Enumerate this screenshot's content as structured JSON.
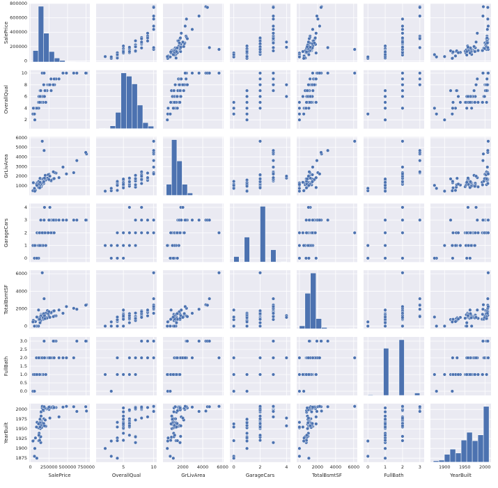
{
  "chart_data": {
    "type": "pairplot",
    "color": "#4c72b0",
    "grid": true,
    "variables": [
      {
        "name": "SalePrice",
        "lim": [
          -15000,
          800000
        ],
        "xticks": [
          0,
          250000,
          500000,
          750000
        ],
        "yticks": [
          0,
          200000,
          400000,
          600000,
          800000
        ]
      },
      {
        "name": "OverallQual",
        "lim": [
          0.5,
          10.5
        ],
        "xticks": [
          5,
          10
        ],
        "yticks": [
          2,
          4,
          6,
          8,
          10
        ]
      },
      {
        "name": "GrLivArea",
        "lim": [
          0,
          6100
        ],
        "xticks": [
          2000,
          4000,
          6000
        ],
        "yticks": [
          1000,
          2000,
          3000,
          4000,
          5000,
          6000
        ]
      },
      {
        "name": "GarageCars",
        "lim": [
          -0.3,
          4.3
        ],
        "xticks": [
          0,
          2,
          4
        ],
        "yticks": [
          0,
          1,
          2,
          3,
          4
        ]
      },
      {
        "name": "TotalBsmtSF",
        "lim": [
          -300,
          6400
        ],
        "xticks": [
          0,
          2000,
          4000,
          6000
        ],
        "yticks": [
          0,
          2000,
          4000,
          6000
        ]
      },
      {
        "name": "FullBath",
        "lim": [
          -0.25,
          3.25
        ],
        "xticks": [
          0,
          1,
          2,
          3
        ],
        "yticks": [
          {
            "value": 0,
            "label": "0.0"
          },
          {
            "value": 0.5,
            "label": "0.5"
          },
          {
            "value": 1,
            "label": "1.0"
          },
          {
            "value": 1.5,
            "label": "1.5"
          },
          {
            "value": 2,
            "label": "2.0"
          },
          {
            "value": 2.5,
            "label": "2.5"
          },
          {
            "value": 3,
            "label": "3.0"
          }
        ]
      },
      {
        "name": "YearBuilt",
        "lim": [
          1865,
          2015
        ],
        "xticks": [
          1900,
          1950,
          2000
        ],
        "yticks": [
          1875,
          1900,
          1925,
          1950,
          1975,
          2000
        ]
      }
    ],
    "rows": [
      [
        208500,
        7,
        1710,
        2,
        856,
        2,
        2003
      ],
      [
        181500,
        6,
        1262,
        2,
        1262,
        2,
        1976
      ],
      [
        223500,
        7,
        1786,
        2,
        920,
        2,
        2001
      ],
      [
        140000,
        7,
        1717,
        3,
        756,
        1,
        1915
      ],
      [
        250000,
        8,
        2198,
        3,
        1145,
        2,
        2000
      ],
      [
        143000,
        5,
        1362,
        2,
        796,
        1,
        1993
      ],
      [
        307000,
        8,
        1694,
        2,
        1686,
        2,
        2004
      ],
      [
        200000,
        7,
        2090,
        2,
        1107,
        2,
        1973
      ],
      [
        129900,
        7,
        1774,
        2,
        952,
        2,
        1931
      ],
      [
        118000,
        5,
        1077,
        1,
        991,
        1,
        1939
      ],
      [
        129500,
        5,
        1040,
        1,
        1040,
        1,
        1965
      ],
      [
        345000,
        9,
        2324,
        3,
        1175,
        3,
        2005
      ],
      [
        144000,
        5,
        912,
        1,
        912,
        1,
        1962
      ],
      [
        279500,
        7,
        1494,
        3,
        1494,
        2,
        2006
      ],
      [
        157000,
        6,
        1253,
        1,
        1253,
        1,
        1960
      ],
      [
        132000,
        7,
        854,
        2,
        832,
        1,
        1929
      ],
      [
        149000,
        6,
        1004,
        2,
        1004,
        1,
        1970
      ],
      [
        90000,
        4,
        1296,
        2,
        0,
        2,
        1967
      ],
      [
        159000,
        5,
        1114,
        2,
        1114,
        1,
        2004
      ],
      [
        139000,
        5,
        1339,
        1,
        1029,
        1,
        1958
      ],
      [
        325300,
        8,
        2376,
        3,
        1158,
        3,
        2005
      ],
      [
        139400,
        7,
        1108,
        1,
        637,
        1,
        1930
      ],
      [
        230000,
        8,
        1795,
        2,
        1777,
        2,
        2002
      ],
      [
        129900,
        5,
        1060,
        2,
        1060,
        1,
        1976
      ],
      [
        154000,
        5,
        1060,
        1,
        1060,
        1,
        1968
      ],
      [
        256300,
        8,
        1600,
        3,
        1566,
        2,
        2007
      ],
      [
        134800,
        5,
        900,
        2,
        900,
        1,
        1951
      ],
      [
        306000,
        8,
        1704,
        3,
        1704,
        2,
        2007
      ],
      [
        207500,
        5,
        1600,
        1,
        1484,
        1,
        1957
      ],
      [
        68500,
        4,
        520,
        1,
        520,
        1,
        1927
      ],
      [
        40000,
        4,
        1317,
        1,
        649,
        1,
        1920
      ],
      [
        149350,
        5,
        1228,
        1,
        1228,
        1,
        1966
      ],
      [
        179900,
        8,
        1234,
        2,
        1234,
        2,
        2007
      ],
      [
        165500,
        5,
        1700,
        2,
        1398,
        1,
        1959
      ],
      [
        277500,
        9,
        1561,
        2,
        1561,
        2,
        2005
      ],
      [
        309000,
        8,
        2452,
        3,
        1088,
        3,
        2004
      ],
      [
        145000,
        5,
        1097,
        2,
        1350,
        1,
        1994
      ],
      [
        153000,
        5,
        1297,
        2,
        1297,
        1,
        1954
      ],
      [
        109000,
        5,
        1057,
        1,
        0,
        1,
        1953
      ],
      [
        82000,
        4,
        1152,
        0,
        0,
        2,
        1955
      ],
      [
        160000,
        6,
        1324,
        2,
        1324,
        2,
        1965
      ],
      [
        170000,
        5,
        1328,
        1,
        1328,
        1,
        1959
      ],
      [
        144000,
        5,
        884,
        2,
        884,
        1,
        1983
      ],
      [
        130250,
        5,
        938,
        1,
        938,
        1,
        1975
      ],
      [
        141000,
        5,
        1150,
        1,
        1150,
        1,
        1959
      ],
      [
        319900,
        9,
        1752,
        2,
        1752,
        2,
        2005
      ],
      [
        239686,
        8,
        2149,
        2,
        1434,
        2,
        2003
      ],
      [
        249700,
        8,
        1656,
        3,
        1656,
        2,
        2006
      ],
      [
        113000,
        4,
        1452,
        0,
        736,
        2,
        1920
      ],
      [
        127000,
        6,
        955,
        1,
        955,
        1,
        1966
      ],
      [
        177000,
        6,
        1470,
        2,
        794,
        2,
        1997
      ],
      [
        114500,
        6,
        1176,
        2,
        816,
        1,
        1934
      ],
      [
        110000,
        5,
        816,
        0,
        1842,
        1,
        1963
      ],
      [
        385000,
        9,
        1842,
        3,
        1842,
        2,
        1981
      ],
      [
        130000,
        6,
        1360,
        2,
        384,
        1,
        1955
      ],
      [
        180500,
        6,
        1425,
        2,
        1425,
        2,
        1964
      ],
      [
        172500,
        6,
        1739,
        2,
        970,
        2,
        1999
      ],
      [
        196500,
        7,
        1720,
        2,
        860,
        2,
        2004
      ],
      [
        438780,
        10,
        2945,
        3,
        1468,
        2,
        2006
      ],
      [
        124900,
        5,
        780,
        2,
        780,
        1,
        1921
      ],
      [
        34900,
        3,
        480,
        1,
        480,
        0,
        1919
      ],
      [
        755000,
        10,
        4316,
        3,
        2444,
        3,
        1996
      ],
      [
        745000,
        10,
        4476,
        3,
        2396,
        3,
        2007
      ],
      [
        160000,
        10,
        5642,
        2,
        6110,
        2,
        2008
      ],
      [
        184750,
        10,
        4676,
        3,
        3138,
        3,
        2007
      ],
      [
        625000,
        10,
        3627,
        3,
        1930,
        3,
        1995
      ],
      [
        582933,
        10,
        2364,
        3,
        2042,
        2,
        2007
      ],
      [
        60000,
        2,
        438,
        1,
        0,
        1,
        1900
      ],
      [
        55000,
        3,
        729,
        0,
        0,
        0,
        1880
      ],
      [
        190000,
        6,
        1800,
        4,
        1200,
        2,
        1958
      ],
      [
        262500,
        8,
        2000,
        4,
        1000,
        2,
        1978
      ],
      [
        485000,
        10,
        2234,
        3,
        2234,
        2,
        2008
      ],
      [
        87000,
        4,
        1040,
        0,
        1040,
        1,
        1875
      ]
    ],
    "histograms": [
      {
        "bins": [
          34900,
          106910,
          178920,
          250930,
          322940,
          394950,
          466960,
          538970,
          610980,
          682990,
          755000
        ],
        "counts": [
          148,
          723,
          373,
          135,
          51,
          19,
          4,
          3,
          2,
          2
        ]
      },
      {
        "bins": [
          1,
          1.9,
          2.8,
          3.7,
          4.6,
          5.5,
          6.4,
          7.3,
          8.2,
          9.1,
          10
        ],
        "counts": [
          2,
          3,
          20,
          116,
          397,
          374,
          319,
          168,
          43,
          18
        ]
      },
      {
        "bins": [
          334,
          864.8,
          1395.6,
          1926.4,
          2457.2,
          2988,
          3518.8,
          4049.6,
          4580.4,
          5111.2,
          5642
        ],
        "counts": [
          141,
          706,
          436,
          140,
          30,
          4,
          1,
          1,
          0,
          1
        ]
      },
      {
        "bins": [
          0,
          0.4,
          0.8,
          1.2,
          1.6,
          2,
          2.4,
          2.8,
          3.2,
          3.6,
          4
        ],
        "counts": [
          81,
          0,
          369,
          0,
          0,
          824,
          0,
          181,
          0,
          5
        ]
      },
      {
        "bins": [
          0,
          611,
          1222,
          1833,
          2444,
          3055,
          3666,
          4277,
          4888,
          5499,
          6110
        ],
        "counts": [
          40,
          490,
          770,
          140,
          17,
          2,
          0,
          0,
          0,
          1
        ]
      },
      {
        "bins": [
          0,
          0.3,
          0.6,
          0.9,
          1.2,
          1.5,
          1.8,
          2.1,
          2.4,
          2.7,
          3
        ],
        "counts": [
          9,
          0,
          0,
          650,
          0,
          0,
          768,
          0,
          0,
          33
        ]
      },
      {
        "bins": [
          1872,
          1885.8,
          1899.6,
          1913.4,
          1927.2,
          1941,
          1954.8,
          1968.6,
          1982.4,
          1996.2,
          2010
        ],
        "counts": [
          10,
          15,
          60,
          100,
          70,
          170,
          230,
          165,
          210,
          430
        ]
      }
    ]
  }
}
